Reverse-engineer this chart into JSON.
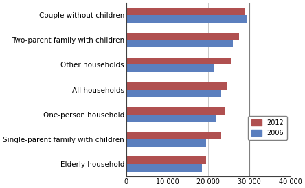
{
  "categories": [
    "Couple without children",
    "Two-parent family with children",
    "Other households",
    "All households",
    "One-person household",
    "Single-parent family with children",
    "Elderly household"
  ],
  "values_2012": [
    29000,
    27500,
    25500,
    24500,
    24000,
    23000,
    19500
  ],
  "values_2006": [
    29500,
    26000,
    21500,
    23000,
    22000,
    19500,
    18500
  ],
  "color_2012": "#B05050",
  "color_2006": "#5B7FBE",
  "xlim": [
    0,
    40000
  ],
  "xticks": [
    0,
    10000,
    20000,
    30000,
    40000
  ],
  "xticklabels": [
    "0",
    "10 000",
    "20 000",
    "30 000",
    "40 000"
  ],
  "bar_height": 0.3,
  "figsize": [
    4.44,
    2.74
  ],
  "dpi": 100,
  "grid_color": "#C0C0C0",
  "vline_x": 30000,
  "vline_color": "#808080",
  "tick_fontsize": 7,
  "label_fontsize": 7.5,
  "legend_fontsize": 7
}
